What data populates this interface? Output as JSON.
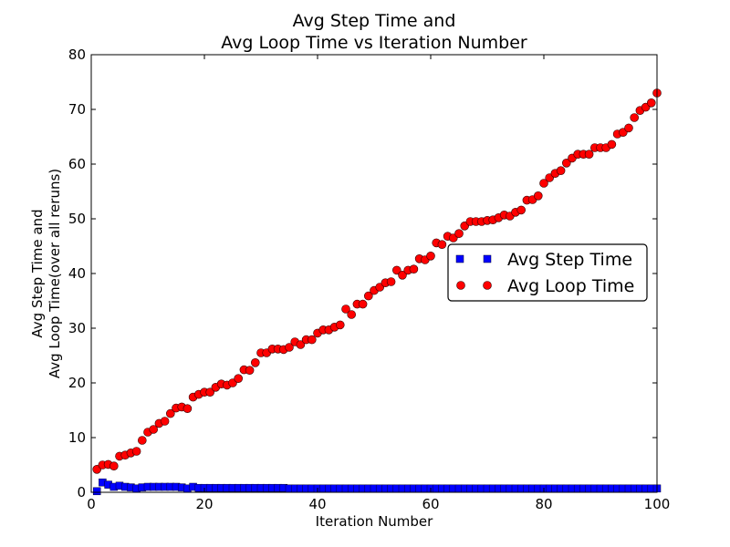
{
  "chart_data": {
    "type": "scatter",
    "title_line1": "Avg Step Time and",
    "title_line2": "Avg Loop Time vs Iteration Number",
    "xlabel": "Iteration Number",
    "ylabel_line1": "Avg Step Time and",
    "ylabel_line2": "Avg Loop Time(over all reruns)",
    "xlim": [
      0,
      100
    ],
    "ylim": [
      0,
      80
    ],
    "x_ticks": [
      0,
      20,
      40,
      60,
      80,
      100
    ],
    "y_ticks": [
      0,
      10,
      20,
      30,
      40,
      50,
      60,
      70,
      80
    ],
    "grid": false,
    "legend": {
      "position": "right"
    },
    "series": [
      {
        "name": "Avg Step Time",
        "marker": "square",
        "color": "#0000ff",
        "x": [
          1,
          2,
          3,
          4,
          5,
          6,
          7,
          8,
          9,
          10,
          11,
          12,
          13,
          14,
          15,
          16,
          17,
          18,
          19,
          20,
          21,
          22,
          23,
          24,
          25,
          26,
          27,
          28,
          29,
          30,
          31,
          32,
          33,
          34,
          35,
          36,
          37,
          38,
          39,
          40,
          41,
          42,
          43,
          44,
          45,
          46,
          47,
          48,
          49,
          50,
          51,
          52,
          53,
          54,
          55,
          56,
          57,
          58,
          59,
          60,
          61,
          62,
          63,
          64,
          65,
          66,
          67,
          68,
          69,
          70,
          71,
          72,
          73,
          74,
          75,
          76,
          77,
          78,
          79,
          80,
          81,
          82,
          83,
          84,
          85,
          86,
          87,
          88,
          89,
          90,
          91,
          92,
          93,
          94,
          95,
          96,
          97,
          98,
          99,
          100
        ],
        "y": [
          0.2,
          1.8,
          1.4,
          1.0,
          1.2,
          1.0,
          0.9,
          0.7,
          0.9,
          1.0,
          1.0,
          1.0,
          1.0,
          1.0,
          1.0,
          0.9,
          0.7,
          1.0,
          0.8,
          0.8,
          0.8,
          0.8,
          0.8,
          0.8,
          0.8,
          0.8,
          0.8,
          0.8,
          0.8,
          0.8,
          0.8,
          0.8,
          0.8,
          0.8,
          0.7,
          0.7,
          0.7,
          0.7,
          0.7,
          0.7,
          0.7,
          0.7,
          0.7,
          0.7,
          0.7,
          0.7,
          0.7,
          0.7,
          0.7,
          0.7,
          0.7,
          0.7,
          0.7,
          0.7,
          0.7,
          0.7,
          0.7,
          0.7,
          0.7,
          0.7,
          0.7,
          0.7,
          0.7,
          0.7,
          0.7,
          0.7,
          0.7,
          0.7,
          0.7,
          0.7,
          0.7,
          0.7,
          0.7,
          0.7,
          0.7,
          0.7,
          0.7,
          0.7,
          0.7,
          0.7,
          0.7,
          0.7,
          0.7,
          0.7,
          0.7,
          0.7,
          0.7,
          0.7,
          0.7,
          0.7,
          0.7,
          0.7,
          0.7,
          0.7,
          0.7,
          0.7,
          0.7,
          0.7,
          0.7,
          0.7
        ]
      },
      {
        "name": "Avg Loop Time",
        "marker": "circle",
        "color": "#ff0000",
        "x": [
          1,
          2,
          3,
          4,
          5,
          6,
          7,
          8,
          9,
          10,
          11,
          12,
          13,
          14,
          15,
          16,
          17,
          18,
          19,
          20,
          21,
          22,
          23,
          24,
          25,
          26,
          27,
          28,
          29,
          30,
          31,
          32,
          33,
          34,
          35,
          36,
          37,
          38,
          39,
          40,
          41,
          42,
          43,
          44,
          45,
          46,
          47,
          48,
          49,
          50,
          51,
          52,
          53,
          54,
          55,
          56,
          57,
          58,
          59,
          60,
          61,
          62,
          63,
          64,
          65,
          66,
          67,
          68,
          69,
          70,
          71,
          72,
          73,
          74,
          75,
          76,
          77,
          78,
          79,
          80,
          81,
          82,
          83,
          84,
          85,
          86,
          87,
          88,
          89,
          90,
          91,
          92,
          93,
          94,
          95,
          96,
          97,
          98,
          99,
          100
        ],
        "y": [
          4.2,
          5.0,
          5.1,
          4.8,
          6.6,
          6.8,
          7.2,
          7.5,
          9.5,
          11.0,
          11.5,
          12.6,
          13.0,
          14.4,
          15.4,
          15.6,
          15.3,
          17.4,
          17.9,
          18.3,
          18.3,
          19.2,
          19.8,
          19.6,
          20.0,
          20.8,
          22.4,
          22.3,
          23.7,
          25.5,
          25.5,
          26.2,
          26.2,
          26.1,
          26.5,
          27.5,
          27.0,
          27.9,
          27.9,
          29.1,
          29.7,
          29.7,
          30.2,
          30.6,
          33.5,
          32.5,
          34.4,
          34.4,
          35.9,
          36.9,
          37.5,
          38.3,
          38.5,
          40.6,
          39.7,
          40.6,
          40.8,
          42.7,
          42.5,
          43.2,
          45.6,
          45.3,
          46.8,
          46.5,
          47.3,
          48.7,
          49.5,
          49.5,
          49.5,
          49.7,
          49.8,
          50.2,
          50.7,
          50.5,
          51.2,
          51.6,
          53.4,
          53.5,
          54.2,
          56.5,
          57.5,
          58.3,
          58.8,
          60.2,
          61.1,
          61.8,
          61.8,
          61.8,
          63.0,
          63.0,
          63.0,
          63.6,
          65.5,
          65.8,
          66.6,
          68.5,
          69.8,
          70.4,
          71.2,
          73.0
        ]
      }
    ]
  }
}
